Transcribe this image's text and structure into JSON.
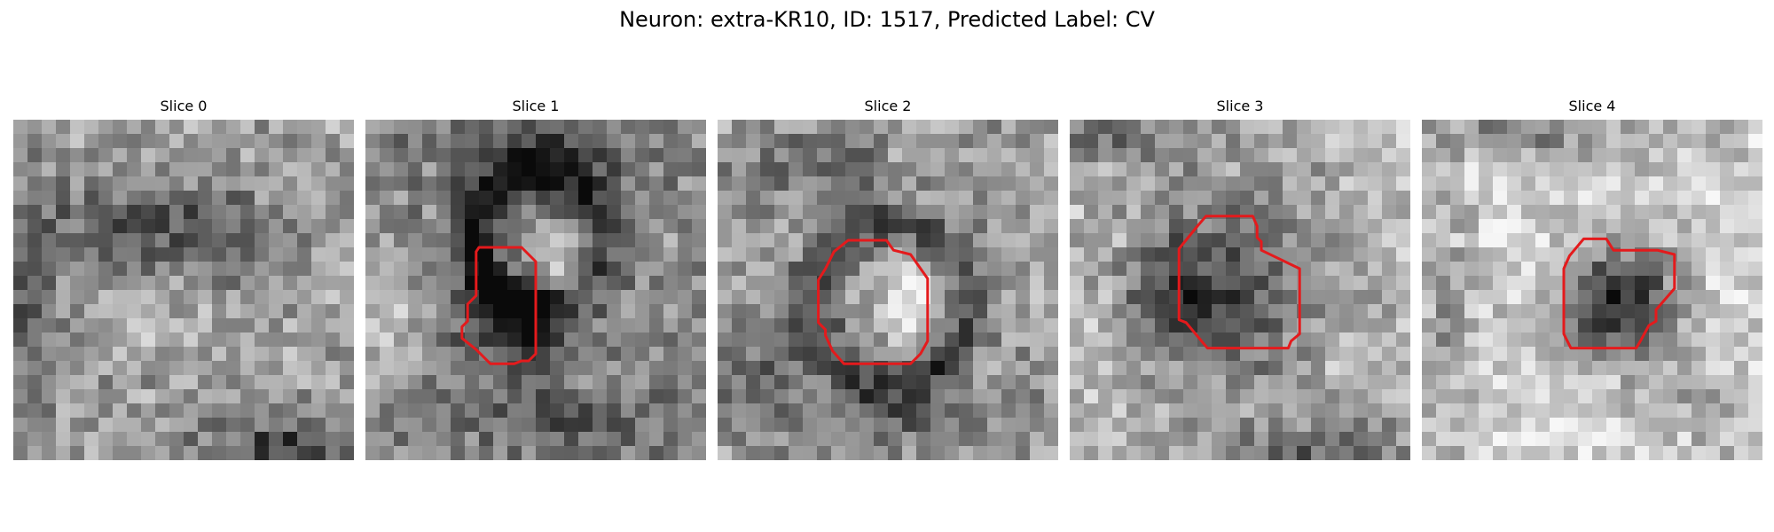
{
  "figure": {
    "title": "Neuron: extra-KR10, ID: 1517, Predicted Label: CV"
  },
  "slices": [
    {
      "title": "Slice 0",
      "has_contour": false,
      "contour_color": "#e41a1c"
    },
    {
      "title": "Slice 1",
      "has_contour": true,
      "contour_color": "#e41a1c"
    },
    {
      "title": "Slice 2",
      "has_contour": true,
      "contour_color": "#e41a1c"
    },
    {
      "title": "Slice 3",
      "has_contour": true,
      "contour_color": "#e41a1c"
    },
    {
      "title": "Slice 4",
      "has_contour": true,
      "contour_color": "#e41a1c"
    }
  ],
  "image_style": {
    "colormap": "grayscale"
  }
}
